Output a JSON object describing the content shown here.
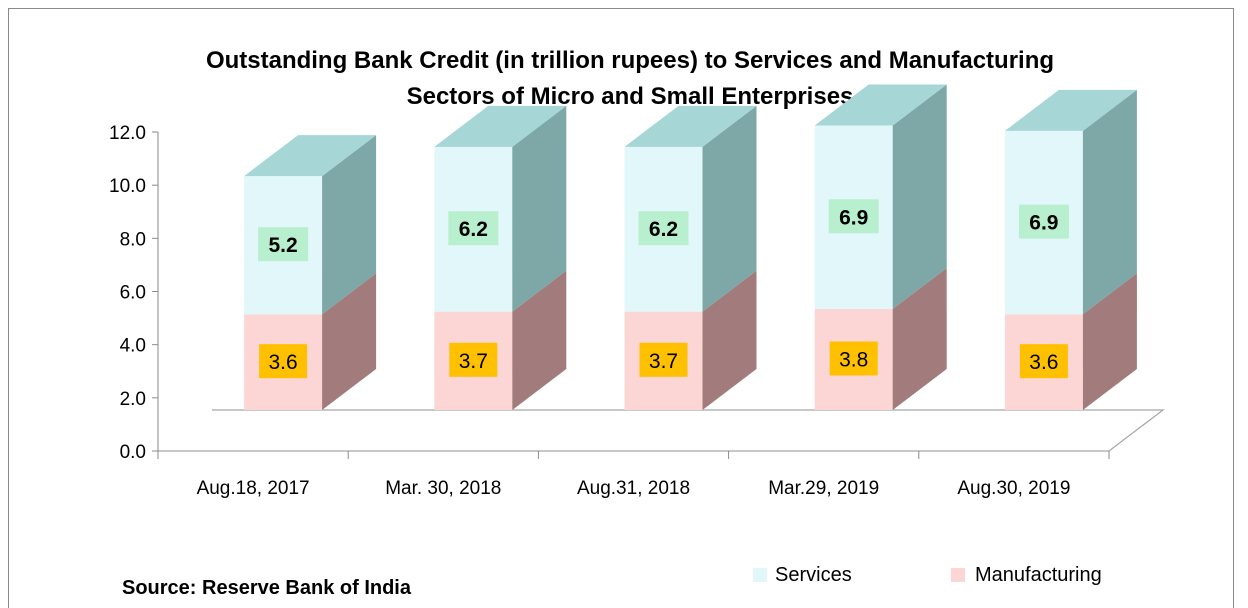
{
  "chart_data": {
    "type": "bar",
    "stacked": true,
    "three_d": true,
    "title_lines": [
      "Outstanding Bank Credit (in trillion rupees) to Services and Manufacturing",
      "Sectors of Micro and Small Enterprises"
    ],
    "categories": [
      "Aug.18, 2017",
      "Mar. 30, 2018",
      "Aug.31, 2018",
      "Mar.29, 2019",
      "Aug.30, 2019"
    ],
    "series": [
      {
        "name": "Manufacturing",
        "values": [
          3.6,
          3.7,
          3.7,
          3.8,
          3.6
        ],
        "labels": [
          "3.6",
          "3.7",
          "3.7",
          "3.8",
          "3.6"
        ],
        "color": "#fcd5d5",
        "label_bg": "#ffc000"
      },
      {
        "name": "Services",
        "values": [
          5.2,
          6.2,
          6.2,
          6.9,
          6.9
        ],
        "labels": [
          "5.2",
          "6.2",
          "6.2",
          "6.9",
          "6.9"
        ],
        "color": "#e2f7f9",
        "label_bg": "#b8efcf"
      }
    ],
    "yticks": [
      "0.0",
      "2.0",
      "4.0",
      "6.0",
      "8.0",
      "10.0",
      "12.0"
    ],
    "ylim": [
      0,
      12
    ],
    "legend_position": "bottom-right",
    "source": "Source: Reserve Bank of India"
  }
}
